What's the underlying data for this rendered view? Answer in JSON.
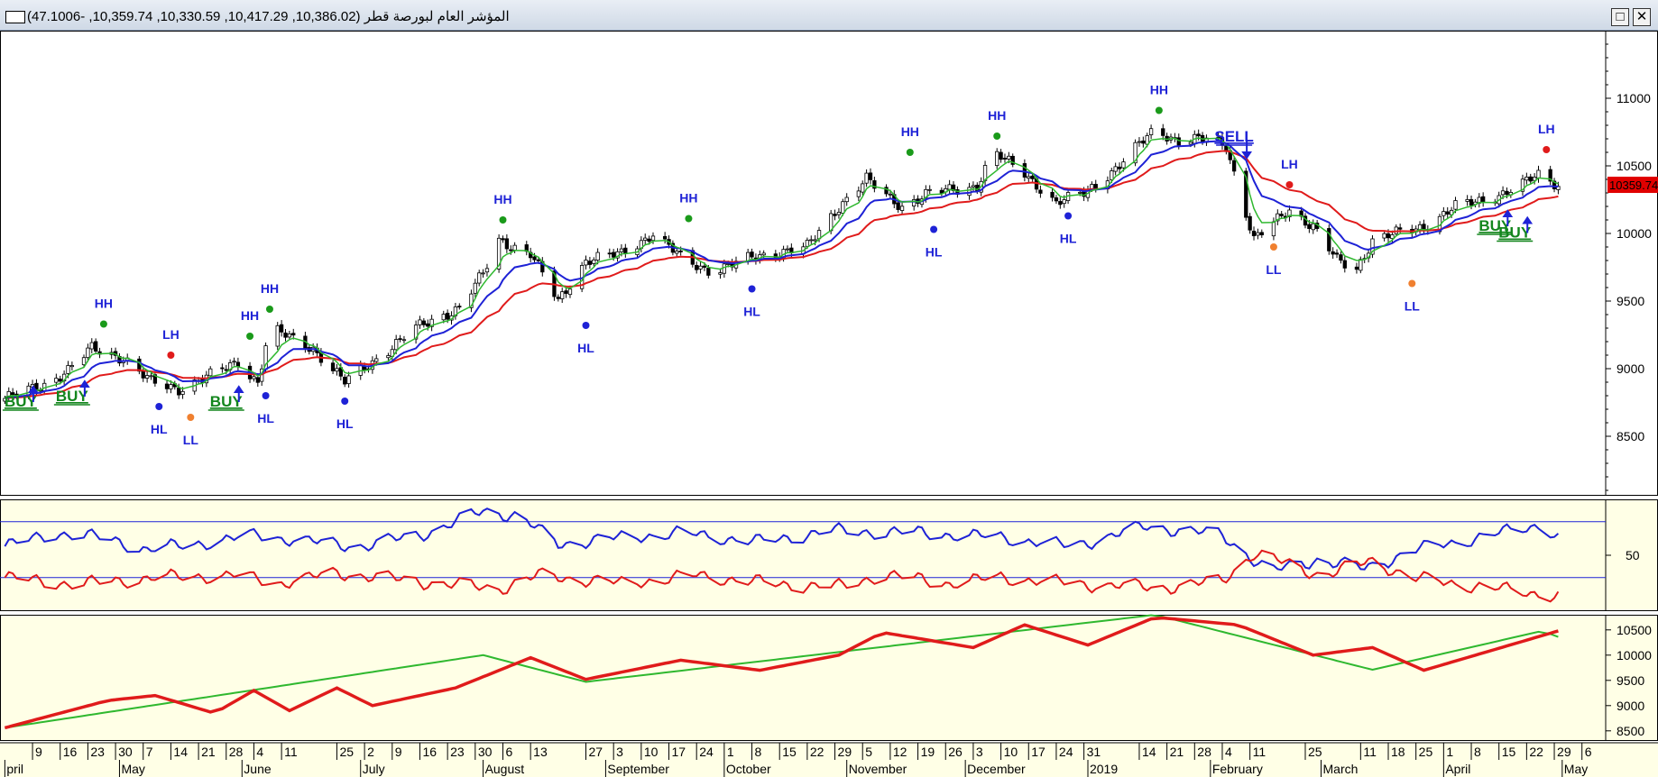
{
  "window": {
    "title": "المؤشر العام لبورصة قطر (10,386.02, 10,417.29, 10,330.59, 10,359.74, -47.1006)",
    "maximize_glyph": "□",
    "close_glyph": "✕"
  },
  "colors": {
    "ema_fast": "#2fb82f",
    "ema_mid": "#1e22d6",
    "ema_slow": "#e01b1b",
    "signal_buy": "#13861d",
    "signal_sell": "#1e22d6",
    "high_dot": "#1a9a1a",
    "lh_dot": "#e01b1b",
    "hl_dot": "#1e22d6",
    "ll_dot": "#f08030",
    "panel_bg": "#ffffe6",
    "price_badge": "#e00000"
  },
  "chart_data": [
    {
      "type": "candlestick",
      "panel": "price",
      "x_ticks": [
        {
          "label": "9",
          "date": "2018-04-09"
        },
        {
          "label": "16",
          "date": "2018-04-16"
        },
        {
          "label": "23",
          "date": "2018-04-23"
        },
        {
          "label": "30",
          "date": "2018-04-30"
        },
        {
          "label": "7",
          "date": "2018-05-07"
        },
        {
          "label": "14",
          "date": "2018-05-14"
        },
        {
          "label": "21",
          "date": "2018-05-21"
        },
        {
          "label": "28",
          "date": "2018-05-28"
        },
        {
          "label": "4",
          "date": "2018-06-04"
        },
        {
          "label": "11",
          "date": "2018-06-11"
        },
        {
          "label": "25",
          "date": "2018-06-25"
        },
        {
          "label": "2",
          "date": "2018-07-02"
        },
        {
          "label": "9",
          "date": "2018-07-09"
        },
        {
          "label": "16",
          "date": "2018-07-16"
        },
        {
          "label": "23",
          "date": "2018-07-23"
        },
        {
          "label": "30",
          "date": "2018-07-30"
        },
        {
          "label": "6",
          "date": "2018-08-06"
        },
        {
          "label": "13",
          "date": "2018-08-13"
        },
        {
          "label": "27",
          "date": "2018-08-27"
        },
        {
          "label": "3",
          "date": "2018-09-03"
        },
        {
          "label": "10",
          "date": "2018-09-10"
        },
        {
          "label": "17",
          "date": "2018-09-17"
        },
        {
          "label": "24",
          "date": "2018-09-24"
        },
        {
          "label": "1",
          "date": "2018-10-01"
        },
        {
          "label": "8",
          "date": "2018-10-08"
        },
        {
          "label": "15",
          "date": "2018-10-15"
        },
        {
          "label": "22",
          "date": "2018-10-22"
        },
        {
          "label": "29",
          "date": "2018-10-29"
        },
        {
          "label": "5",
          "date": "2018-11-05"
        },
        {
          "label": "12",
          "date": "2018-11-12"
        },
        {
          "label": "19",
          "date": "2018-11-19"
        },
        {
          "label": "26",
          "date": "2018-11-26"
        },
        {
          "label": "3",
          "date": "2018-12-03"
        },
        {
          "label": "10",
          "date": "2018-12-10"
        },
        {
          "label": "17",
          "date": "2018-12-17"
        },
        {
          "label": "24",
          "date": "2018-12-24"
        },
        {
          "label": "31",
          "date": "2018-12-31"
        },
        {
          "label": "14",
          "date": "2019-01-14"
        },
        {
          "label": "21",
          "date": "2019-01-21"
        },
        {
          "label": "28",
          "date": "2019-01-28"
        },
        {
          "label": "4",
          "date": "2019-02-04"
        },
        {
          "label": "11",
          "date": "2019-02-11"
        },
        {
          "label": "25",
          "date": "2019-02-25"
        },
        {
          "label": "11",
          "date": "2019-03-11"
        },
        {
          "label": "18",
          "date": "2019-03-18"
        },
        {
          "label": "25",
          "date": "2019-03-25"
        },
        {
          "label": "1",
          "date": "2019-04-01"
        },
        {
          "label": "8",
          "date": "2019-04-08"
        },
        {
          "label": "15",
          "date": "2019-04-15"
        },
        {
          "label": "22",
          "date": "2019-04-22"
        },
        {
          "label": "29",
          "date": "2019-04-29"
        },
        {
          "label": "6",
          "date": "2019-05-06"
        }
      ],
      "months": [
        {
          "label": "pril",
          "date": "2018-04-02"
        },
        {
          "label": "May",
          "date": "2018-05-01"
        },
        {
          "label": "June",
          "date": "2018-06-01"
        },
        {
          "label": "July",
          "date": "2018-07-01"
        },
        {
          "label": "August",
          "date": "2018-08-01"
        },
        {
          "label": "September",
          "date": "2018-09-01"
        },
        {
          "label": "October",
          "date": "2018-10-01"
        },
        {
          "label": "November",
          "date": "2018-11-01"
        },
        {
          "label": "December",
          "date": "2018-12-01"
        },
        {
          "label": "2019",
          "date": "2019-01-01"
        },
        {
          "label": "February",
          "date": "2019-02-01"
        },
        {
          "label": "March",
          "date": "2019-03-01"
        },
        {
          "label": "April",
          "date": "2019-04-01"
        },
        {
          "label": "May",
          "date": "2019-05-01"
        }
      ],
      "y_ticks": [
        8500,
        9000,
        9500,
        10000,
        10500,
        11000
      ],
      "ylim": [
        8060,
        11500
      ],
      "last_price_label": "10359.74",
      "last_price": 10359.74,
      "close_anchors": [
        [
          "2018-04-02",
          8780
        ],
        [
          "2018-04-12",
          8880
        ],
        [
          "2018-04-18",
          8990
        ],
        [
          "2018-04-24",
          9150
        ],
        [
          "2018-05-02",
          9080
        ],
        [
          "2018-05-09",
          8900
        ],
        [
          "2018-05-16",
          8850
        ],
        [
          "2018-05-24",
          8950
        ],
        [
          "2018-05-31",
          9050
        ],
        [
          "2018-06-05",
          8900
        ],
        [
          "2018-06-08",
          9300
        ],
        [
          "2018-06-19",
          9150
        ],
        [
          "2018-06-27",
          8900
        ],
        [
          "2018-07-04",
          9050
        ],
        [
          "2018-07-15",
          9300
        ],
        [
          "2018-07-26",
          9450
        ],
        [
          "2018-08-01",
          9700
        ],
        [
          "2018-08-05",
          9950
        ],
        [
          "2018-08-13",
          9850
        ],
        [
          "2018-08-20",
          9500
        ],
        [
          "2018-08-27",
          9800
        ],
        [
          "2018-09-05",
          9850
        ],
        [
          "2018-09-13",
          10000
        ],
        [
          "2018-09-21",
          9800
        ],
        [
          "2018-09-28",
          9720
        ],
        [
          "2018-10-09",
          9830
        ],
        [
          "2018-10-22",
          9900
        ],
        [
          "2018-10-30",
          10200
        ],
        [
          "2018-11-06",
          10400
        ],
        [
          "2018-11-10",
          10300
        ],
        [
          "2018-11-15",
          10200
        ],
        [
          "2018-11-22",
          10300
        ],
        [
          "2018-12-04",
          10350
        ],
        [
          "2018-12-08",
          10600
        ],
        [
          "2018-12-16",
          10450
        ],
        [
          "2018-12-24",
          10220
        ],
        [
          "2018-12-31",
          10300
        ],
        [
          "2019-01-09",
          10500
        ],
        [
          "2019-01-18",
          10780
        ],
        [
          "2019-01-24",
          10680
        ],
        [
          "2019-02-01",
          10700
        ],
        [
          "2019-02-05",
          10650
        ],
        [
          "2019-02-12",
          9950
        ],
        [
          "2019-02-21",
          10180
        ],
        [
          "2019-02-27",
          10050
        ],
        [
          "2019-03-05",
          9800
        ],
        [
          "2019-03-10",
          9740
        ],
        [
          "2019-03-14",
          9950
        ],
        [
          "2019-03-20",
          10000
        ],
        [
          "2019-03-27",
          10050
        ],
        [
          "2019-04-04",
          10200
        ],
        [
          "2019-04-12",
          10250
        ],
        [
          "2019-04-20",
          10350
        ],
        [
          "2019-04-25",
          10430
        ],
        [
          "2019-04-30",
          10360
        ]
      ],
      "pivots": [
        {
          "label": "HH",
          "date": "2018-04-27",
          "value": 9330
        },
        {
          "label": "LH",
          "date": "2018-05-14",
          "value": 9100
        },
        {
          "label": "HL",
          "date": "2018-05-11",
          "value": 8720
        },
        {
          "label": "LL",
          "date": "2018-05-19",
          "value": 8640
        },
        {
          "label": "HH",
          "date": "2018-06-03",
          "value": 9240
        },
        {
          "label": "HH",
          "date": "2018-06-08",
          "value": 9440
        },
        {
          "label": "HL",
          "date": "2018-06-07",
          "value": 8800
        },
        {
          "label": "HL",
          "date": "2018-06-27",
          "value": 8760
        },
        {
          "label": "HH",
          "date": "2018-08-06",
          "value": 10100
        },
        {
          "label": "HL",
          "date": "2018-08-27",
          "value": 9320
        },
        {
          "label": "HH",
          "date": "2018-09-22",
          "value": 10110
        },
        {
          "label": "HL",
          "date": "2018-10-08",
          "value": 9590
        },
        {
          "label": "HH",
          "date": "2018-11-17",
          "value": 10600
        },
        {
          "label": "HL",
          "date": "2018-11-23",
          "value": 10030
        },
        {
          "label": "HH",
          "date": "2018-12-09",
          "value": 10720
        },
        {
          "label": "HL",
          "date": "2018-12-27",
          "value": 10130
        },
        {
          "label": "HH",
          "date": "2019-01-19",
          "value": 10910
        },
        {
          "label": "LL",
          "date": "2019-02-17",
          "value": 9900
        },
        {
          "label": "LH",
          "date": "2019-02-21",
          "value": 10360
        },
        {
          "label": "LL",
          "date": "2019-03-24",
          "value": 9630
        },
        {
          "label": "LH",
          "date": "2019-04-27",
          "value": 10620
        }
      ],
      "signals": [
        {
          "label": "BUY",
          "date": "2018-04-06",
          "value": 8720,
          "kind": "buy"
        },
        {
          "label": "BUY",
          "date": "2018-04-19",
          "value": 8760,
          "kind": "buy"
        },
        {
          "label": "BUY",
          "date": "2018-05-28",
          "value": 8720,
          "kind": "buy"
        },
        {
          "label": "SELL",
          "date": "2019-02-07",
          "value": 10680,
          "kind": "sell"
        },
        {
          "label": "BUY",
          "date": "2019-04-14",
          "value": 10020,
          "kind": "buy"
        },
        {
          "label": "BUY",
          "date": "2019-04-19",
          "value": 9970,
          "kind": "buy"
        }
      ]
    },
    {
      "type": "line",
      "panel": "oscillator",
      "y_ticks": [
        50
      ],
      "ylim": [
        0,
        100
      ],
      "levels": [
        80,
        30
      ],
      "series": [
        {
          "key": "ema_mid",
          "anchors": [
            [
              "2018-04-02",
              58
            ],
            [
              "2018-04-15",
              70
            ],
            [
              "2018-04-28",
              65
            ],
            [
              "2018-05-08",
              55
            ],
            [
              "2018-05-20",
              60
            ],
            [
              "2018-06-05",
              68
            ],
            [
              "2018-06-18",
              62
            ],
            [
              "2018-07-02",
              58
            ],
            [
              "2018-07-20",
              72
            ],
            [
              "2018-08-01",
              90
            ],
            [
              "2018-08-10",
              85
            ],
            [
              "2018-08-20",
              60
            ],
            [
              "2018-09-05",
              66
            ],
            [
              "2018-09-20",
              70
            ],
            [
              "2018-10-10",
              62
            ],
            [
              "2018-10-28",
              72
            ],
            [
              "2018-11-20",
              70
            ],
            [
              "2018-12-10",
              66
            ],
            [
              "2018-12-28",
              58
            ],
            [
              "2019-01-16",
              76
            ],
            [
              "2019-02-04",
              68
            ],
            [
              "2019-02-16",
              35
            ],
            [
              "2019-02-28",
              46
            ],
            [
              "2019-03-12",
              38
            ],
            [
              "2019-03-25",
              55
            ],
            [
              "2019-04-10",
              66
            ],
            [
              "2019-04-26",
              78
            ],
            [
              "2019-04-30",
              66
            ]
          ]
        },
        {
          "key": "ema_slow",
          "anchors": [
            [
              "2018-04-02",
              30
            ],
            [
              "2018-04-20",
              24
            ],
            [
              "2018-05-10",
              30
            ],
            [
              "2018-05-30",
              32
            ],
            [
              "2018-06-10",
              25
            ],
            [
              "2018-06-25",
              34
            ],
            [
              "2018-07-20",
              25
            ],
            [
              "2018-08-05",
              20
            ],
            [
              "2018-08-15",
              32
            ],
            [
              "2018-09-05",
              25
            ],
            [
              "2018-09-24",
              32
            ],
            [
              "2018-10-15",
              24
            ],
            [
              "2018-10-31",
              22
            ],
            [
              "2018-11-10",
              33
            ],
            [
              "2018-11-26",
              25
            ],
            [
              "2018-12-10",
              30
            ],
            [
              "2018-12-31",
              24
            ],
            [
              "2019-01-20",
              21
            ],
            [
              "2019-02-04",
              27
            ],
            [
              "2019-02-12",
              52
            ],
            [
              "2019-03-01",
              32
            ],
            [
              "2019-03-14",
              45
            ],
            [
              "2019-03-24",
              30
            ],
            [
              "2019-04-10",
              22
            ],
            [
              "2019-04-30",
              14
            ]
          ]
        }
      ]
    },
    {
      "type": "line",
      "panel": "lower",
      "y_ticks": [
        8500,
        9000,
        9500,
        10000,
        10500
      ],
      "ylim": [
        8300,
        10800
      ],
      "series": [
        {
          "key": "ema_fast",
          "anchors": [
            [
              "2018-04-02",
              8560
            ],
            [
              "2018-08-01",
              10000
            ],
            [
              "2018-08-27",
              9470
            ],
            [
              "2019-01-18",
              10800
            ],
            [
              "2019-03-14",
              9710
            ],
            [
              "2019-04-26",
              10480
            ],
            [
              "2019-04-30",
              10360
            ]
          ]
        },
        {
          "key": "ema_slow",
          "anchors": [
            [
              "2018-04-02",
              8560
            ],
            [
              "2018-04-28",
              9100
            ],
            [
              "2018-05-10",
              9200
            ],
            [
              "2018-05-25",
              8850
            ],
            [
              "2018-06-04",
              9300
            ],
            [
              "2018-06-13",
              8900
            ],
            [
              "2018-06-25",
              9350
            ],
            [
              "2018-07-04",
              9000
            ],
            [
              "2018-07-25",
              9350
            ],
            [
              "2018-08-13",
              9950
            ],
            [
              "2018-08-27",
              9520
            ],
            [
              "2018-09-20",
              9900
            ],
            [
              "2018-10-10",
              9700
            ],
            [
              "2018-10-30",
              10000
            ],
            [
              "2018-11-10",
              10450
            ],
            [
              "2018-12-03",
              10150
            ],
            [
              "2018-12-16",
              10600
            ],
            [
              "2019-01-01",
              10200
            ],
            [
              "2019-01-18",
              10750
            ],
            [
              "2019-02-08",
              10600
            ],
            [
              "2019-02-27",
              10000
            ],
            [
              "2019-03-14",
              10150
            ],
            [
              "2019-03-27",
              9700
            ],
            [
              "2019-04-30",
              10480
            ]
          ]
        }
      ]
    }
  ]
}
